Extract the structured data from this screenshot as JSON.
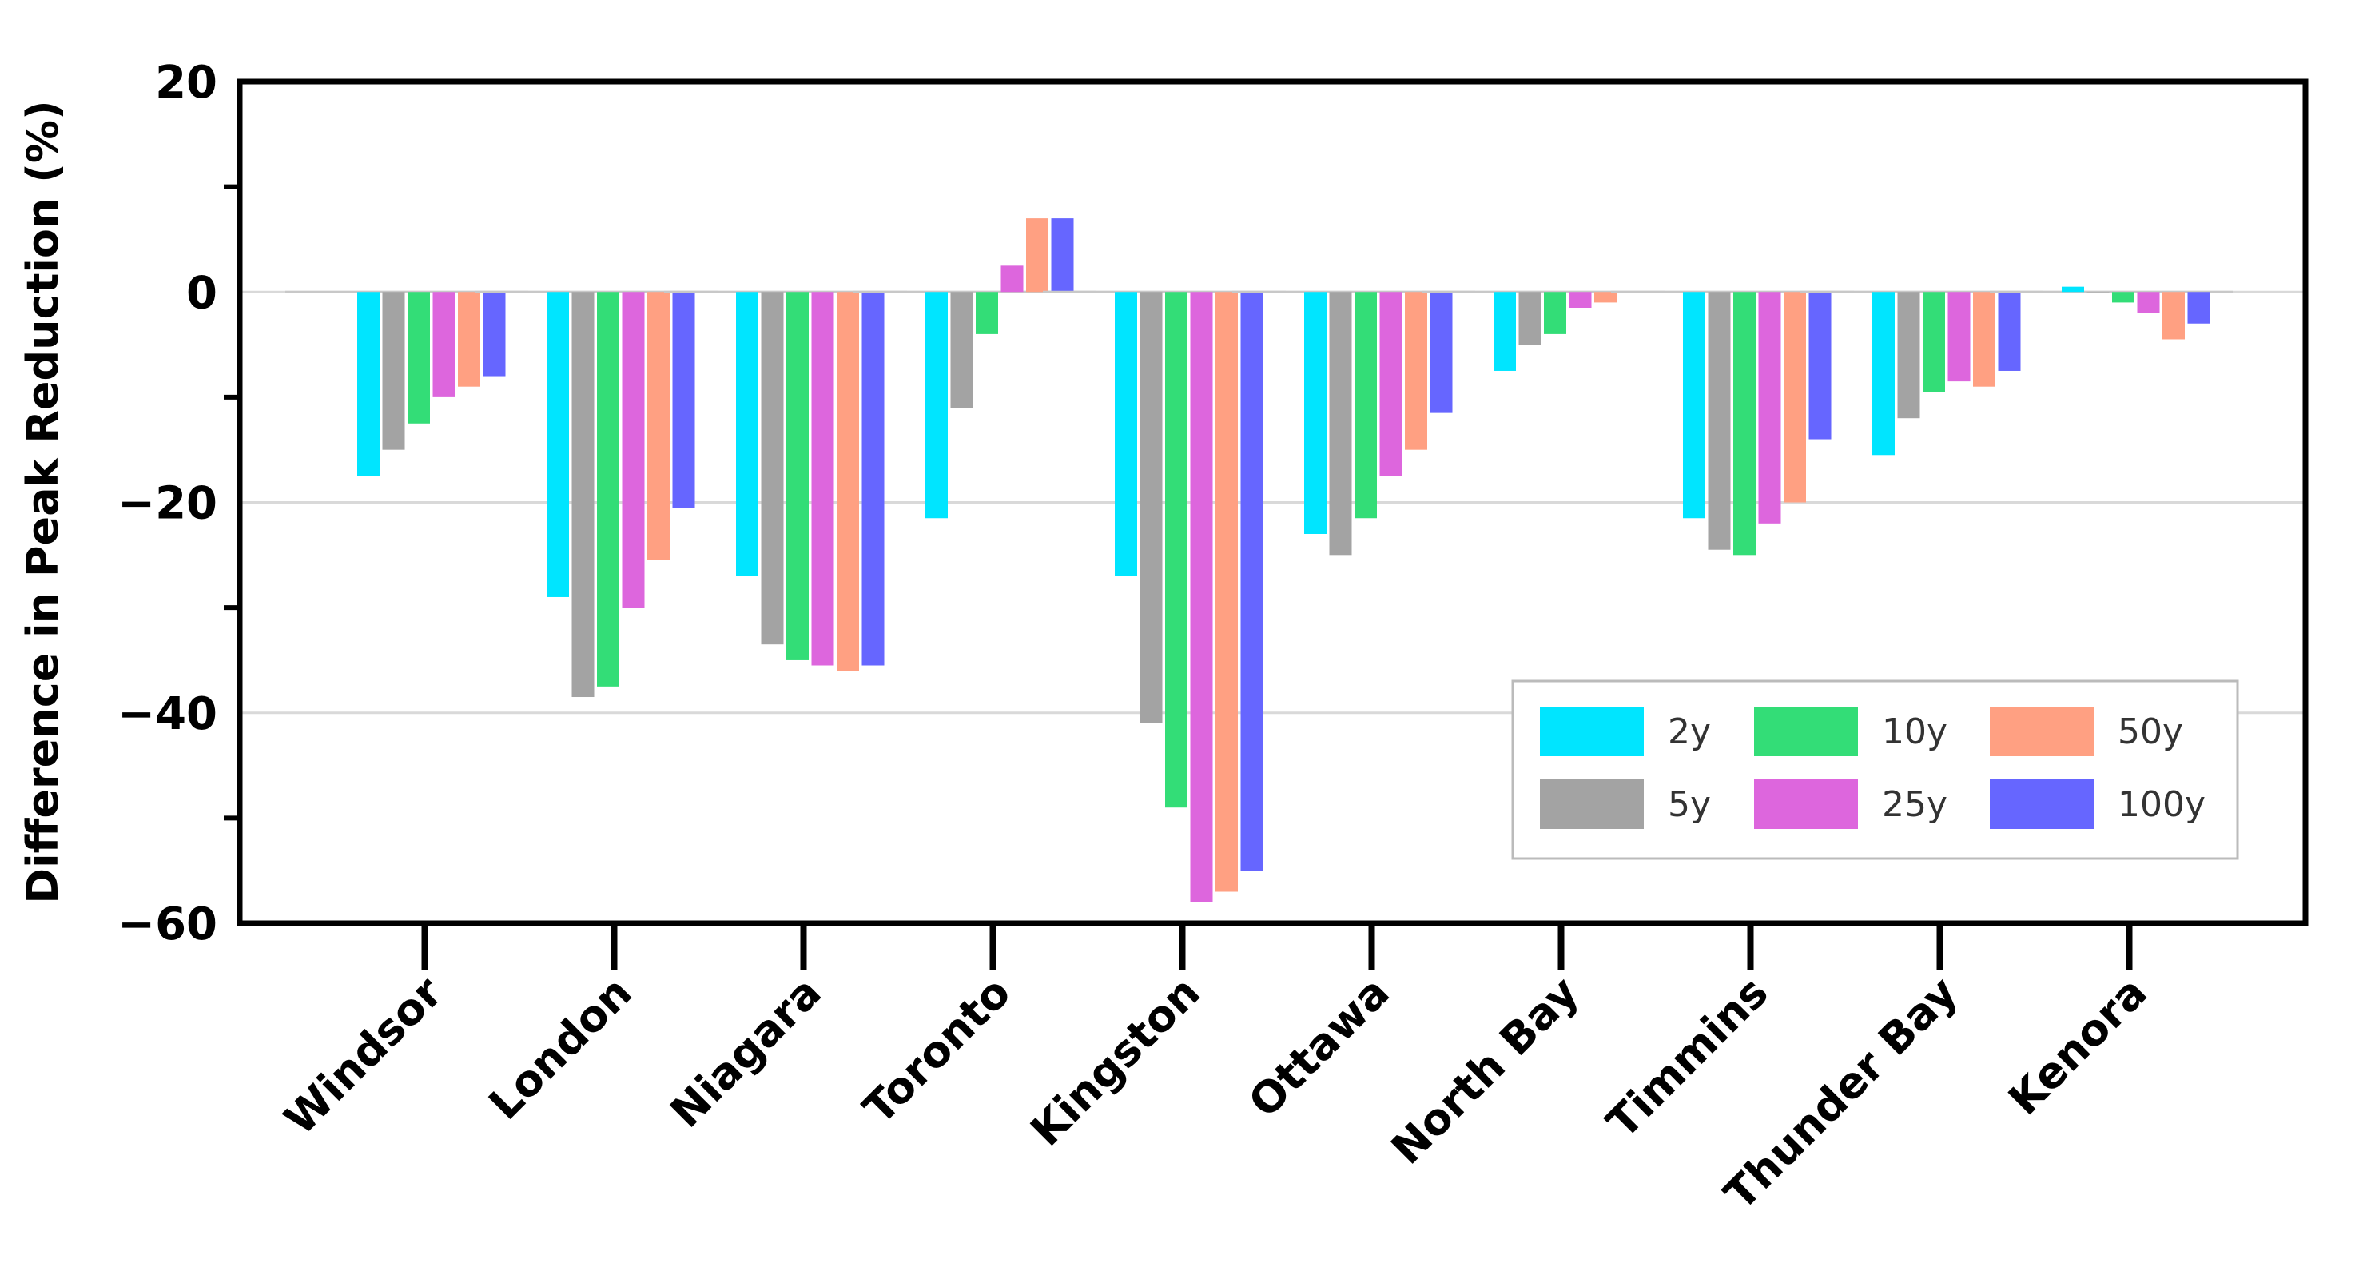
{
  "chart_data": {
    "type": "bar",
    "title": "",
    "xlabel": "",
    "ylabel": "Difference in Peak Reduction (%)",
    "ylim": [
      -60,
      20
    ],
    "yticks": [
      20,
      0,
      -20,
      -40,
      -60
    ],
    "ytick_labels": [
      "20",
      "0",
      "−20",
      "−40",
      "−60"
    ],
    "grid": true,
    "legend_position": "lower-right",
    "categories": [
      "Windsor",
      "London",
      "Niagara",
      "Toronto",
      "Kingston",
      "Ottawa",
      "North Bay",
      "Timmins",
      "Thunder Bay",
      "Kenora"
    ],
    "series": [
      {
        "name": "2y",
        "color": "#00e5ff",
        "values": [
          -17.5,
          -29,
          -27,
          -21.5,
          -27,
          -23,
          -7.5,
          -21.5,
          -15.5,
          0.5
        ]
      },
      {
        "name": "5y",
        "color": "#a3a3a3",
        "values": [
          -15,
          -38.5,
          -33.5,
          -11,
          -41,
          -25,
          -5,
          -24.5,
          -12,
          0
        ]
      },
      {
        "name": "10y",
        "color": "#33dd77",
        "values": [
          -12.5,
          -37.5,
          -35,
          -4,
          -49,
          -21.5,
          -4,
          -25,
          -9.5,
          -1
        ]
      },
      {
        "name": "25y",
        "color": "#dd66dd",
        "values": [
          -10,
          -30,
          -35.5,
          2.5,
          -58,
          -17.5,
          -1.5,
          -22,
          -8.5,
          -2
        ]
      },
      {
        "name": "50y",
        "color": "#ffa082",
        "values": [
          -9,
          -25.5,
          -36,
          7,
          -57,
          -15,
          -1,
          -20,
          -9,
          -4.5
        ]
      },
      {
        "name": "100y",
        "color": "#6666ff",
        "values": [
          -8,
          -20.5,
          -35.5,
          7,
          -55,
          -11.5,
          0,
          -14,
          -7.5,
          -3
        ]
      }
    ]
  }
}
